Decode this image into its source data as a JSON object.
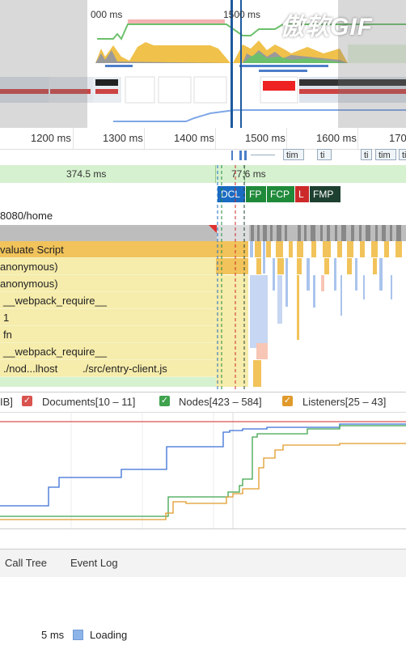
{
  "overview": {
    "tick_left": "000 ms",
    "tick_right": "1500 ms"
  },
  "watermark": "傲软GIF",
  "ruler": {
    "ticks": [
      "1200 ms",
      "1300 ms",
      "1400 ms",
      "1500 ms",
      "1600 ms",
      "170"
    ]
  },
  "network": {
    "items": [
      "tim",
      "ti",
      "ti",
      "tim",
      "ti"
    ]
  },
  "frames": {
    "left": "374.5 ms",
    "right": "77.6 ms"
  },
  "markers": {
    "dcl": "DCL",
    "fp": "FP",
    "fcp": "FCP",
    "l": "L",
    "fmp": "FMP",
    "colors": {
      "dcl": "#1a6bc2",
      "fp": "#1f8a3a",
      "fcp": "#1f8a3a",
      "l": "#cc2a2a",
      "fmp": "#1e4030"
    }
  },
  "main": {
    "title": "8080/home",
    "rows": [
      {
        "label": "valuate Script"
      },
      {
        "label": "anonymous)"
      },
      {
        "label": "anonymous)"
      },
      {
        "label": "__webpack_require__"
      },
      {
        "label": "1"
      },
      {
        "label": "fn"
      },
      {
        "label": "__webpack_require__"
      },
      {
        "label": "./nod...lhost",
        "label2": "./src/entry-client.js"
      }
    ]
  },
  "legend": {
    "prefix": "IB]",
    "documents": "Documents[10 – 11]",
    "nodes": "Nodes[423 – 584]",
    "listeners": "Listeners[25 – 43]",
    "check": "✓",
    "colors": {
      "documents": "#d9534f",
      "nodes": "#3fa34d",
      "listeners": "#e09a2b"
    }
  },
  "tabs": {
    "call_tree": "Call Tree",
    "event_log": "Event Log"
  },
  "summary": {
    "value": "5 ms",
    "category": "Loading",
    "color": "#8db4e8"
  }
}
